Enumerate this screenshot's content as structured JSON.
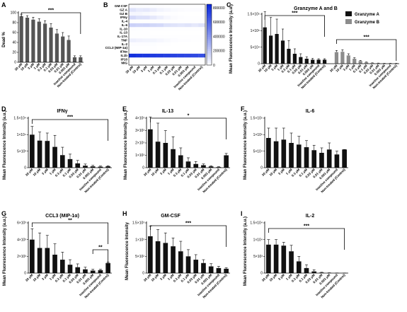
{
  "categories": [
    "30 μM",
    "10 μM",
    "3 μM",
    "1 μM",
    "0.3 μM",
    "0.1 μM",
    "0.03 μM",
    "0.01 μM",
    "0.003 μM",
    "Inactive compound",
    "Non-treated (Control)"
  ],
  "panels": [
    {
      "letter": "A",
      "title": "",
      "ylabel": "Dead %",
      "yticks": [
        "0",
        "20",
        "40",
        "60",
        "80",
        "100"
      ],
      "sig": [
        {
          "label": "***"
        }
      ]
    },
    {
      "letter": "B",
      "title": "",
      "ylabel": "",
      "yticks": [],
      "sig": []
    },
    {
      "letter": "C",
      "title": "Granzyme A and B",
      "ylabel": "Mean Fluorescence Intensity (a.u.)",
      "yticks": [
        "0",
        "5×10⁴",
        "1×10⁵",
        "1.5×10⁵"
      ],
      "sig": [
        {
          "label": "***"
        },
        {
          "label": "***"
        }
      ]
    },
    {
      "letter": "D",
      "title": "IFNγ",
      "ylabel": "Mean Fluorescence Intensity (a.u.)",
      "yticks": [
        "0",
        "5×10³",
        "1×10⁴",
        "1.5×10⁴"
      ],
      "sig": [
        {
          "label": "***"
        }
      ]
    },
    {
      "letter": "E",
      "title": "IL-13",
      "ylabel": "Mean Fluorescence Intensity (a.u.)",
      "yticks": [
        "0",
        "1×10³",
        "2×10³",
        "3×10³",
        "4×10³"
      ],
      "sig": [
        {
          "label": "*"
        }
      ]
    },
    {
      "letter": "F",
      "title": "IL-6",
      "ylabel": "Mean Fluorescence Intensity (a.u.)",
      "yticks": [
        "0",
        "5×10⁴",
        "1×10⁵",
        "1.5×10⁵"
      ],
      "sig": []
    },
    {
      "letter": "G",
      "title": "CCL3 (MIP-1α)",
      "ylabel": "Mean Fluorescence Intensity (a.u.)",
      "yticks": [
        "0",
        "2×10³",
        "4×10³",
        "6×10³"
      ],
      "sig": [
        {
          "label": "**"
        },
        {
          "label": "**"
        }
      ]
    },
    {
      "letter": "H",
      "title": "GM-CSF",
      "ylabel": "Mean Fluorescence Intensity",
      "yticks": [
        "0",
        "5×10²",
        "1×10³",
        "1.5×10³"
      ],
      "sig": [
        {
          "label": "***"
        }
      ]
    },
    {
      "letter": "I",
      "title": "IL-2",
      "ylabel": "Mean Fluorescence Intensity (a.u.)",
      "yticks": [
        "0",
        "5×10³",
        "1×10⁴",
        "1.5×10⁴"
      ],
      "sig": [
        {
          "label": "***"
        }
      ]
    }
  ],
  "heatmap": {
    "rows": [
      "GM-CSF",
      "GZ A",
      "GZ B",
      "IFNγ",
      "IL-4",
      "IL-6",
      "IL-10",
      "IL-13",
      "IL-17A",
      "TNF",
      "IL-2",
      "CCL3 (MIP-1α)",
      "IFNα",
      "IL1b",
      "IP10",
      "MIG"
    ],
    "colorbar_ticks": [
      "0",
      "200000",
      "400000",
      "600000",
      "800000"
    ]
  },
  "legend": [
    {
      "name": "Granzyme A",
      "color": "#111111"
    },
    {
      "name": "Granzyme B",
      "color": "#8c8c8c"
    }
  ],
  "chart_data": [
    {
      "panel": "A",
      "type": "bar",
      "categories": [
        "30 μM",
        "10 μM",
        "3 μM",
        "1 μM",
        "0.3 μM",
        "0.1 μM",
        "0.03 μM",
        "0.01 μM",
        "0.003 μM",
        "Inactive compound",
        "Non-treated (Control)"
      ],
      "values": [
        93,
        90,
        86,
        82,
        78,
        70,
        58,
        52,
        45,
        10,
        10
      ],
      "errors": [
        4,
        4,
        5,
        6,
        6,
        8,
        8,
        8,
        8,
        3,
        3
      ],
      "ylabel": "Dead %",
      "ylim": [
        0,
        100
      ],
      "bar_color": "#555555"
    },
    {
      "panel": "B",
      "type": "heatmap",
      "rows": [
        "GM-CSF",
        "GZ A",
        "GZ B",
        "IFNγ",
        "IL-4",
        "IL-6",
        "IL-10",
        "IL-13",
        "IL-17A",
        "TNF",
        "IL-2",
        "CCL3 (MIP-1α)",
        "IFNα",
        "IL1b",
        "IP10",
        "MIG"
      ],
      "columns": [
        "30 μM",
        "10 μM",
        "3 μM",
        "1 μM",
        "0.3 μM",
        "0.1 μM",
        "0.03 μM",
        "0.01 μM",
        "0.003 μM",
        "Inactive compound",
        "Non-treated (Control)"
      ],
      "values": [
        [
          15000,
          13000,
          11000,
          9000,
          7000,
          5000,
          4000,
          3000,
          2500,
          2000,
          2000
        ],
        [
          110000,
          85000,
          90000,
          70000,
          45000,
          30000,
          20000,
          15000,
          12000,
          12000,
          12000
        ],
        [
          35000,
          36000,
          25000,
          15000,
          8000,
          4000,
          2000,
          1500,
          1000,
          1000,
          1000
        ],
        [
          150000,
          120000,
          118000,
          90000,
          60000,
          30000,
          15000,
          8000,
          5000,
          4000,
          5000
        ],
        [
          5000,
          5000,
          5000,
          5000,
          5000,
          5000,
          5000,
          5000,
          5000,
          5000,
          5000
        ],
        [
          180000,
          170000,
          175000,
          160000,
          150000,
          120000,
          110000,
          100000,
          110000,
          90000,
          110000
        ],
        [
          10000,
          9000,
          8000,
          7000,
          6000,
          5000,
          4000,
          4000,
          4000,
          4000,
          4000
        ],
        [
          3000,
          2000,
          2000,
          1500,
          1000,
          500,
          300,
          200,
          100,
          100,
          1000
        ],
        [
          5000,
          5000,
          4000,
          4000,
          3000,
          3000,
          2000,
          2000,
          2000,
          2000,
          2000
        ],
        [
          60000,
          50000,
          45000,
          40000,
          30000,
          20000,
          10000,
          8000,
          6000,
          5000,
          5000
        ],
        [
          12000,
          12000,
          11000,
          9000,
          5000,
          2000,
          500,
          200,
          100,
          100,
          100
        ],
        [
          4000,
          3000,
          3000,
          2000,
          1500,
          1000,
          800,
          500,
          400,
          300,
          1200
        ],
        [
          2000,
          2000,
          2000,
          2000,
          2000,
          2000,
          2000,
          2000,
          2000,
          2000,
          2000
        ],
        [
          820000,
          800000,
          790000,
          780000,
          770000,
          760000,
          750000,
          740000,
          730000,
          720000,
          700000
        ],
        [
          5000,
          5000,
          5000,
          5000,
          5000,
          5000,
          5000,
          5000,
          5000,
          5000,
          5000
        ],
        [
          3000,
          3000,
          3000,
          3000,
          3000,
          3000,
          3000,
          3000,
          3000,
          3000,
          3000
        ]
      ],
      "color_range": [
        0,
        850000
      ]
    },
    {
      "panel": "C",
      "type": "bar",
      "categories": [
        "30 μM",
        "10 μM",
        "3 μM",
        "1 μM",
        "0.3 μM",
        "0.1 μM",
        "0.03 μM",
        "0.01 μM",
        "0.003 μM",
        "Inactive compound",
        "Non-treated (Control)"
      ],
      "ylim": [
        0,
        150000
      ],
      "series": [
        {
          "name": "Granzyme A",
          "values": [
            110000,
            85000,
            90000,
            70000,
            45000,
            30000,
            20000,
            15000,
            12000,
            12000,
            12000
          ],
          "errors": [
            60000,
            55000,
            45000,
            35000,
            25000,
            15000,
            10000,
            6000,
            4000,
            3000,
            3000
          ]
        },
        {
          "name": "Granzyme B",
          "values": [
            35000,
            36000,
            25000,
            15000,
            8000,
            4000,
            2000,
            1500,
            1000,
            1000,
            1000
          ],
          "errors": [
            5000,
            6000,
            5000,
            3000,
            2000,
            1000,
            500,
            300,
            200,
            200,
            200
          ]
        }
      ]
    },
    {
      "panel": "D",
      "type": "bar",
      "categories": [
        "30 μM",
        "10 μM",
        "3 μM",
        "1 μM",
        "0.3 μM",
        "0.1 μM",
        "0.03 μM",
        "0.01 μM",
        "0.003 μM",
        "Inactive compound",
        "Non-treated (Control)"
      ],
      "values": [
        10000,
        8200,
        8100,
        6300,
        3800,
        2600,
        1300,
        600,
        400,
        300,
        400
      ],
      "errors": [
        2500,
        2600,
        2400,
        3500,
        2400,
        1500,
        900,
        500,
        300,
        200,
        200
      ],
      "ylim": [
        0,
        15000
      ]
    },
    {
      "panel": "E",
      "type": "bar",
      "categories": [
        "30 μM",
        "10 μM",
        "3 μM",
        "1 μM",
        "0.3 μM",
        "0.1 μM",
        "0.03 μM",
        "0.01 μM",
        "0.003 μM",
        "Inactive compound",
        "Non-treated (Control)"
      ],
      "values": [
        3100,
        2100,
        2000,
        1500,
        1000,
        500,
        300,
        200,
        100,
        50,
        1000
      ],
      "errors": [
        1000,
        1500,
        1000,
        1000,
        600,
        300,
        200,
        100,
        50,
        30,
        150
      ],
      "ylim": [
        0,
        4000
      ]
    },
    {
      "panel": "F",
      "type": "bar",
      "categories": [
        "30 μM",
        "10 μM",
        "3 μM",
        "1 μM",
        "0.3 μM",
        "0.1 μM",
        "0.03 μM",
        "0.01 μM",
        "0.003 μM",
        "Inactive compound",
        "Non-treated (Control)"
      ],
      "values": [
        90000,
        80000,
        85000,
        75000,
        70000,
        62000,
        53000,
        45000,
        55000,
        40000,
        55000
      ],
      "errors": [
        30000,
        40000,
        35000,
        30000,
        25000,
        20000,
        15000,
        15000,
        20000,
        10000,
        0
      ],
      "ylim": [
        0,
        150000
      ]
    },
    {
      "panel": "G",
      "type": "bar",
      "categories": [
        "30 μM",
        "10 μM",
        "3 μM",
        "1 μM",
        "0.3 μM",
        "0.1 μM",
        "0.03 μM",
        "0.01 μM",
        "0.003 μM",
        "Inactive compound",
        "Non-treated (Control)"
      ],
      "values": [
        4000,
        3000,
        3000,
        2200,
        1600,
        1000,
        700,
        450,
        300,
        350,
        1200
      ],
      "errors": [
        1300,
        1800,
        1500,
        1300,
        900,
        600,
        400,
        250,
        150,
        100,
        100
      ],
      "ylim": [
        0,
        6000
      ]
    },
    {
      "panel": "H",
      "type": "bar",
      "categories": [
        "30 μM",
        "10 μM",
        "3 μM",
        "1 μM",
        "0.3 μM",
        "0.1 μM",
        "0.03 μM",
        "0.01 μM",
        "0.003 μM",
        "Inactive compound",
        "Non-treated (Control)"
      ],
      "values": [
        1100,
        950,
        900,
        800,
        650,
        500,
        400,
        300,
        200,
        150,
        130
      ],
      "errors": [
        300,
        350,
        300,
        250,
        300,
        200,
        150,
        100,
        80,
        50,
        30
      ],
      "ylim": [
        0,
        1500
      ]
    },
    {
      "panel": "I",
      "type": "bar",
      "categories": [
        "30 μM",
        "10 μM",
        "3 μM",
        "1 μM",
        "0.3 μM",
        "0.1 μM",
        "0.03 μM",
        "0.01 μM",
        "0.003 μM",
        "Inactive compound",
        "Non-treated (Control)"
      ],
      "values": [
        8500,
        8500,
        8200,
        6500,
        3500,
        1500,
        500,
        150,
        50,
        30,
        30
      ],
      "errors": [
        1500,
        1500,
        1000,
        1800,
        1500,
        1000,
        500,
        100,
        50,
        20,
        10
      ],
      "ylim": [
        0,
        15000
      ]
    }
  ]
}
